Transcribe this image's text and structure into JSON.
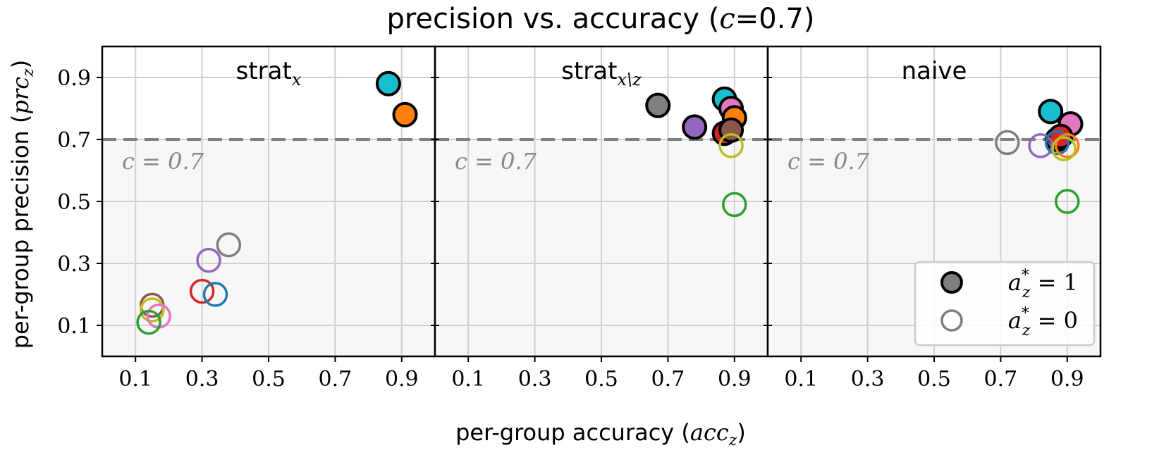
{
  "chart_data": {
    "type": "scatter",
    "title_main": "precision vs. accuracy (",
    "title_var": "c",
    "title_eq": "=0.7)",
    "xlabel_main": "per-group accuracy (",
    "xlabel_var": "acc",
    "xlabel_sub": "z",
    "xlabel_close": ")",
    "ylabel_main": "per-group precision (",
    "ylabel_var": "prc",
    "ylabel_sub": "z",
    "ylabel_close": ")",
    "threshold": 0.7,
    "threshold_label": "c = 0.7",
    "xlim": [
      0.0,
      1.0
    ],
    "ylim": [
      0.0,
      1.0
    ],
    "xticks": [
      0.1,
      0.3,
      0.5,
      0.7,
      0.9
    ],
    "yticks": [
      0.1,
      0.3,
      0.5,
      0.7,
      0.9
    ],
    "xtick_labels": [
      "0.1",
      "0.3",
      "0.5",
      "0.7",
      "0.9"
    ],
    "ytick_labels": [
      "0.1",
      "0.3",
      "0.5",
      "0.7",
      "0.9"
    ],
    "grid": true,
    "legend": {
      "placement": "lower-right",
      "entries": [
        {
          "marker": "filled",
          "label": "a*z = 1"
        },
        {
          "marker": "hollow",
          "label": "a*z = 0"
        }
      ]
    },
    "colors": {
      "blue": "#1f77b4",
      "orange": "#ff7f0e",
      "green": "#2ca02c",
      "red": "#d62728",
      "purple": "#9467bd",
      "brown": "#8c564b",
      "pink": "#e377c2",
      "gray": "#7f7f7f",
      "olive": "#bcbd22",
      "cyan": "#17becf"
    },
    "panels": [
      {
        "title": "strat",
        "title_sub": "x",
        "points": [
          {
            "x": 0.86,
            "y": 0.88,
            "color": "cyan",
            "filled": true
          },
          {
            "x": 0.91,
            "y": 0.78,
            "color": "orange",
            "filled": true
          },
          {
            "x": 0.38,
            "y": 0.36,
            "color": "gray",
            "filled": false
          },
          {
            "x": 0.32,
            "y": 0.31,
            "color": "purple",
            "filled": false
          },
          {
            "x": 0.3,
            "y": 0.21,
            "color": "red",
            "filled": false
          },
          {
            "x": 0.34,
            "y": 0.2,
            "color": "blue",
            "filled": false
          },
          {
            "x": 0.15,
            "y": 0.165,
            "color": "brown",
            "filled": false
          },
          {
            "x": 0.15,
            "y": 0.15,
            "color": "olive",
            "filled": false
          },
          {
            "x": 0.17,
            "y": 0.13,
            "color": "pink",
            "filled": false
          },
          {
            "x": 0.14,
            "y": 0.11,
            "color": "green",
            "filled": false
          }
        ]
      },
      {
        "title": "strat",
        "title_sub": "x\\z",
        "points": [
          {
            "x": 0.67,
            "y": 0.81,
            "color": "gray",
            "filled": true
          },
          {
            "x": 0.78,
            "y": 0.74,
            "color": "purple",
            "filled": true
          },
          {
            "x": 0.87,
            "y": 0.83,
            "color": "cyan",
            "filled": true
          },
          {
            "x": 0.89,
            "y": 0.8,
            "color": "pink",
            "filled": true
          },
          {
            "x": 0.9,
            "y": 0.77,
            "color": "orange",
            "filled": true
          },
          {
            "x": 0.87,
            "y": 0.72,
            "color": "red",
            "filled": true
          },
          {
            "x": 0.89,
            "y": 0.73,
            "color": "brown",
            "filled": true
          },
          {
            "x": 0.89,
            "y": 0.68,
            "color": "olive",
            "filled": false
          },
          {
            "x": 0.9,
            "y": 0.49,
            "color": "green",
            "filled": false
          }
        ]
      },
      {
        "title": "naive",
        "title_sub": "",
        "points": [
          {
            "x": 0.85,
            "y": 0.79,
            "color": "cyan",
            "filled": true
          },
          {
            "x": 0.91,
            "y": 0.75,
            "color": "pink",
            "filled": true
          },
          {
            "x": 0.87,
            "y": 0.7,
            "color": "brown",
            "filled": true
          },
          {
            "x": 0.88,
            "y": 0.71,
            "color": "red",
            "filled": true
          },
          {
            "x": 0.72,
            "y": 0.69,
            "color": "gray",
            "filled": false
          },
          {
            "x": 0.82,
            "y": 0.68,
            "color": "purple",
            "filled": false
          },
          {
            "x": 0.87,
            "y": 0.69,
            "color": "blue",
            "filled": false
          },
          {
            "x": 0.9,
            "y": 0.68,
            "color": "orange",
            "filled": false
          },
          {
            "x": 0.89,
            "y": 0.67,
            "color": "olive",
            "filled": false
          },
          {
            "x": 0.9,
            "y": 0.5,
            "color": "green",
            "filled": false
          }
        ]
      }
    ]
  }
}
